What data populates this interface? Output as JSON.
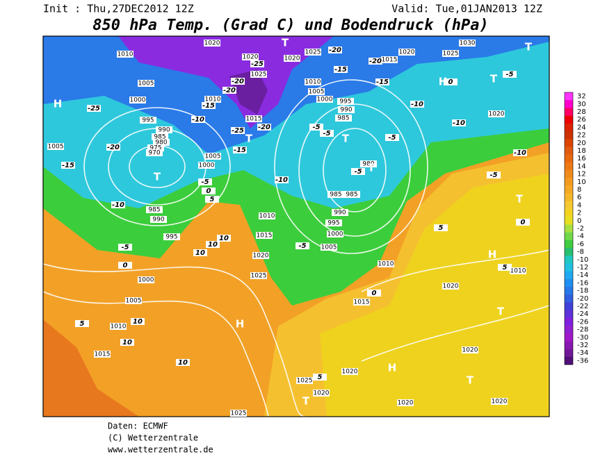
{
  "header": {
    "init": "Init : Thu,27DEC2012 12Z",
    "valid": "Valid: Tue,01JAN2013 12Z",
    "title": "850 hPa Temp. (Grad C) und Bodendruck (hPa)"
  },
  "colorbar": {
    "ticks": [
      32,
      30,
      28,
      26,
      24,
      22,
      20,
      18,
      16,
      14,
      12,
      10,
      8,
      6,
      4,
      2,
      0,
      -2,
      -4,
      -6,
      -8,
      -10,
      -12,
      -14,
      -16,
      -18,
      -20,
      -22,
      -24,
      -26,
      -28,
      -30,
      -32,
      -34,
      -36
    ],
    "colors": [
      "#ff33ff",
      "#ff00cc",
      "#ff0066",
      "#ee0000",
      "#dd2200",
      "#cc3300",
      "#dd4400",
      "#e05a10",
      "#e86a10",
      "#ee7a16",
      "#f08a1a",
      "#f39a1e",
      "#f5a824",
      "#f5b82a",
      "#f5c830",
      "#f2d420",
      "#e6e020",
      "#a8e040",
      "#70d84a",
      "#40cc40",
      "#28c070",
      "#20c8c0",
      "#20c0e0",
      "#20a8f0",
      "#2090f0",
      "#2878e8",
      "#3060e0",
      "#4040d8",
      "#6030d8",
      "#8020e0",
      "#9020d0",
      "#a018c8",
      "#8818b0",
      "#701898",
      "#501078"
    ]
  },
  "map": {
    "pressure_labels": [
      "1010",
      "1005",
      "1000",
      "995",
      "990",
      "985",
      "980",
      "975",
      "970",
      "1005",
      "985",
      "990",
      "995",
      "1000",
      "1005",
      "1010",
      "1015",
      "1020",
      "1025",
      "1015",
      "1010",
      "1005",
      "1000",
      "1010",
      "1015",
      "1020",
      "1025",
      "1020",
      "1025",
      "1015",
      "1020",
      "1025",
      "1030",
      "1010",
      "1005",
      "1000",
      "995",
      "990",
      "985",
      "980",
      "985",
      "985",
      "990",
      "995",
      "1000",
      "1005",
      "1010",
      "1015",
      "1020",
      "1020",
      "1020",
      "1020",
      "1025",
      "1020",
      "1020",
      "1025",
      "1020",
      "1010",
      "1020"
    ],
    "temp_labels": [
      "-25",
      "-20",
      "-15",
      "-10",
      "-5",
      "0",
      "5",
      "10",
      "10",
      "10",
      "10",
      "10",
      "5",
      "0",
      "-5",
      "-10",
      "-15",
      "-20",
      "-25",
      "-20",
      "-15",
      "-10",
      "-5",
      "-5",
      "-5",
      "-5",
      "-5",
      "-10",
      "-15",
      "-20",
      "-15",
      "-20",
      "-10",
      "-10",
      "-5",
      "-5",
      "0",
      "0",
      "5",
      "5",
      "0",
      "5",
      "10",
      "-25",
      "-20"
    ],
    "pressure_systems": [
      "H",
      "T",
      "T",
      "T",
      "T",
      "H",
      "T",
      "T",
      "T",
      "H",
      "T",
      "H",
      "H",
      "T",
      "T",
      "T"
    ]
  },
  "footer": [
    "Daten: ECMWF",
    "(C) Wetterzentrale",
    "www.wetterzentrale.de"
  ]
}
